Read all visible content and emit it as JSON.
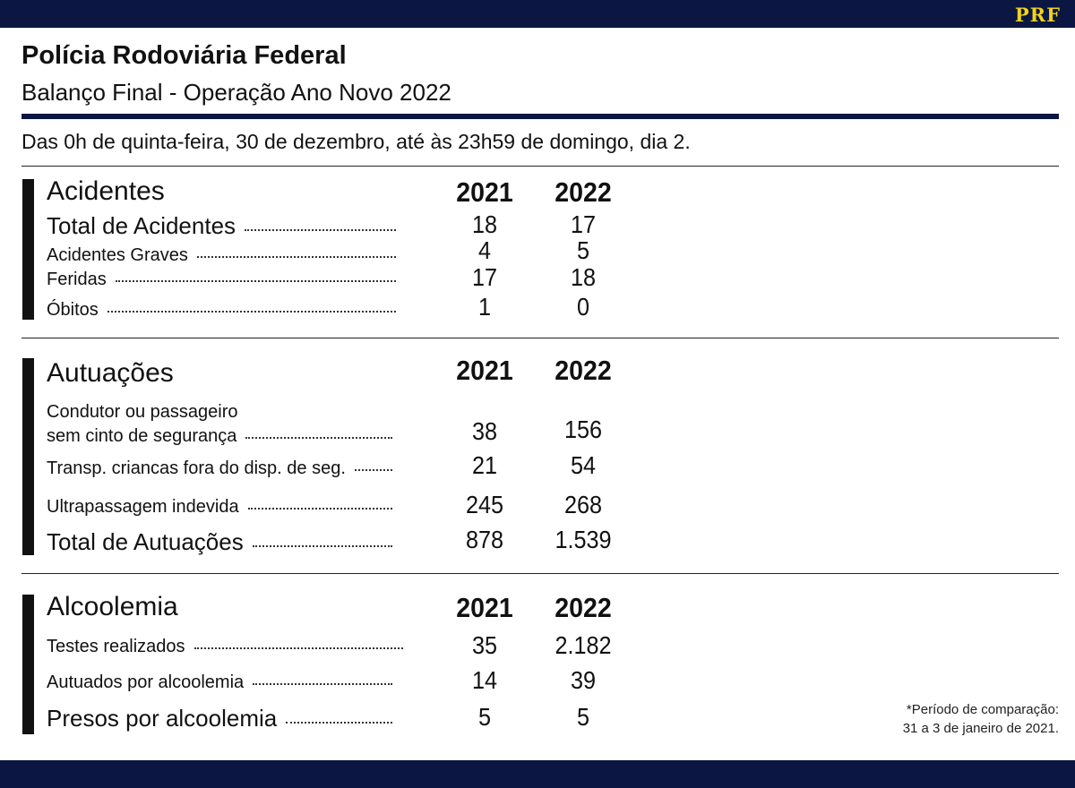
{
  "header": {
    "logo": "PRF",
    "title": "Polícia Rodoviária Federal",
    "subtitle": "Balanço Final - Operação Ano Novo 2022",
    "period": "Das 0h de quinta-feira, 30 de dezembro, até às 23h59 de domingo, dia 2."
  },
  "colors": {
    "navy": "#0b1742",
    "logo_yellow": "#f2d21b"
  },
  "years": [
    "2021",
    "2022"
  ],
  "sections": [
    {
      "title": "Acidentes",
      "rows": [
        {
          "label": "Total de Acidentes",
          "v2021": "18",
          "v2022": "17"
        },
        {
          "label": "Acidentes Graves",
          "v2021": "4",
          "v2022": "5"
        },
        {
          "label": "Feridas",
          "v2021": "17",
          "v2022": "18"
        },
        {
          "label": "Óbitos",
          "v2021": "1",
          "v2022": "0"
        }
      ]
    },
    {
      "title": "Autuações",
      "rows": [
        {
          "label": "Condutor ou passageiro",
          "label2": "sem cinto de segurança",
          "v2021": "38",
          "v2022": "156"
        },
        {
          "label": "Transp. criancas fora do disp. de seg.",
          "v2021": "21",
          "v2022": "54"
        },
        {
          "label": "Ultrapassagem indevida",
          "v2021": "245",
          "v2022": "268"
        },
        {
          "label": "Total de Autuações",
          "v2021": "878",
          "v2022": "1.539"
        }
      ]
    },
    {
      "title": "Alcoolemia",
      "rows": [
        {
          "label": "Testes realizados",
          "v2021": "35",
          "v2022": "2.182"
        },
        {
          "label": "Autuados por alcoolemia",
          "v2021": "14",
          "v2022": "39"
        },
        {
          "label": "Presos por alcoolemia",
          "v2021": "5",
          "v2022": "5"
        }
      ]
    }
  ],
  "note": {
    "line1": "*Período de comparação:",
    "line2": "31 a 3 de janeiro de 2021."
  }
}
